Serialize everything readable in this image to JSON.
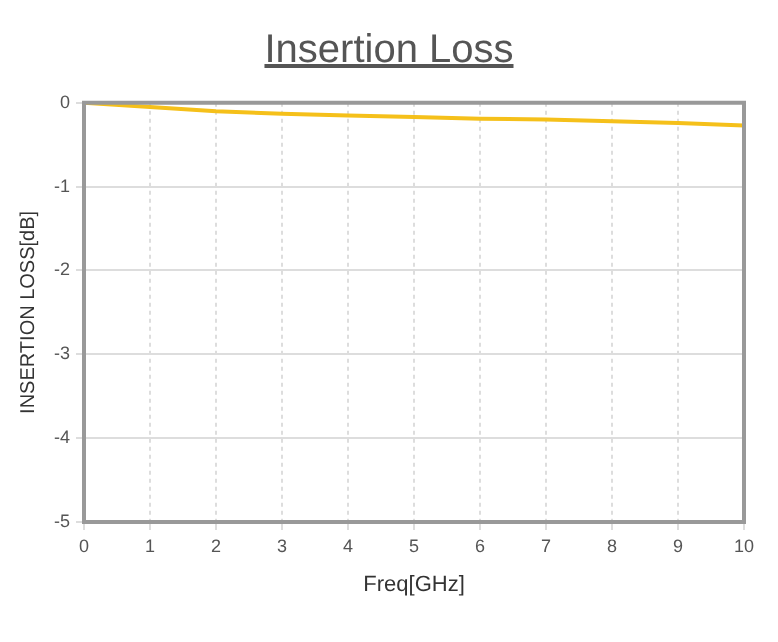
{
  "chart_data": {
    "type": "line",
    "title": "Insertion Loss",
    "xlabel": "Freq[GHz]",
    "ylabel": "INSERTION LOSS[dB]",
    "x": [
      0,
      1,
      2,
      3,
      4,
      5,
      6,
      7,
      8,
      9,
      10
    ],
    "series": [
      {
        "color": "#f5c01a",
        "values": [
          0,
          -0.05,
          -0.1,
          -0.13,
          -0.15,
          -0.17,
          -0.19,
          -0.2,
          -0.22,
          -0.24,
          -0.27
        ]
      }
    ],
    "xlim": [
      0,
      10
    ],
    "xticks": [
      0,
      1,
      2,
      3,
      4,
      5,
      6,
      7,
      8,
      9,
      10
    ],
    "ylim": [
      -5,
      0
    ],
    "yticks": [
      -5,
      -4,
      -3,
      -2,
      -1,
      0
    ],
    "grid": true,
    "legend": false,
    "marker": "none",
    "line_style": "solid"
  }
}
